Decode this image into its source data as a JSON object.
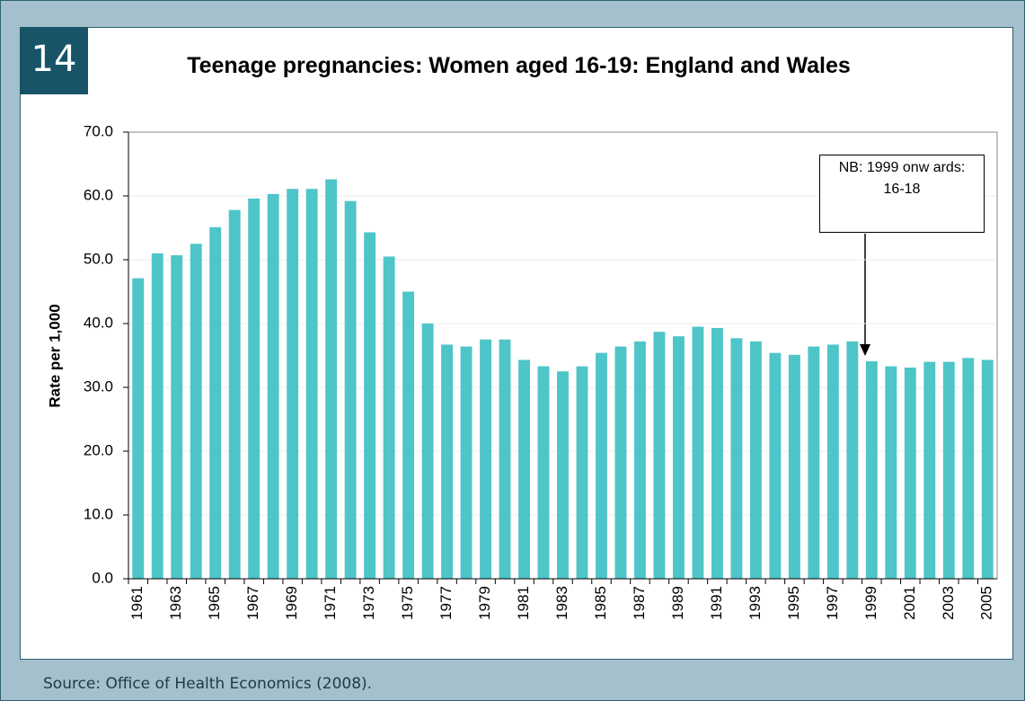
{
  "badge": "14",
  "source": "Source: Office of Health Economics (2008).",
  "chart_data": {
    "type": "bar",
    "title": "Teenage pregnancies: Women aged 16-19: England and Wales",
    "y_label": "Rate per 1,000",
    "categories": [
      "1961",
      null,
      "1963",
      null,
      "1965",
      null,
      "1967",
      null,
      "1969",
      null,
      "1971",
      null,
      "1973",
      null,
      "1975",
      null,
      "1977",
      null,
      "1979",
      null,
      "1981",
      null,
      "1983",
      null,
      "1985",
      null,
      "1987",
      null,
      "1989",
      null,
      "1991",
      null,
      "1993",
      null,
      "1995",
      null,
      "1997",
      null,
      "1999",
      null,
      "2001",
      null,
      "2003",
      null,
      "2005"
    ],
    "values": [
      47.1,
      51.0,
      50.7,
      52.5,
      55.1,
      57.8,
      59.6,
      60.3,
      61.1,
      61.1,
      62.6,
      59.2,
      54.3,
      50.5,
      45.0,
      40.0,
      36.7,
      36.4,
      37.5,
      37.5,
      34.3,
      33.3,
      32.5,
      33.3,
      35.4,
      36.4,
      37.2,
      38.7,
      38.0,
      39.5,
      39.3,
      37.7,
      37.2,
      35.4,
      35.1,
      36.4,
      36.7,
      37.2,
      34.1,
      33.3,
      33.1,
      34.0,
      34.0,
      34.6,
      34.3
    ],
    "color": "#4ec5c8",
    "ylim": [
      0,
      70
    ],
    "yticks": [
      {
        "value": 0,
        "label": "0.0"
      },
      {
        "value": 10,
        "label": "10.0"
      },
      {
        "value": 20,
        "label": "20.0"
      },
      {
        "value": 30,
        "label": "30.0"
      },
      {
        "value": 40,
        "label": "40.0"
      },
      {
        "value": 50,
        "label": "50.0"
      },
      {
        "value": 60,
        "label": "60.0"
      },
      {
        "value": 70,
        "label": "70.0"
      }
    ],
    "grid": true,
    "annotation": [
      "NB: 1999 onw ards:",
      "16-18"
    ]
  }
}
